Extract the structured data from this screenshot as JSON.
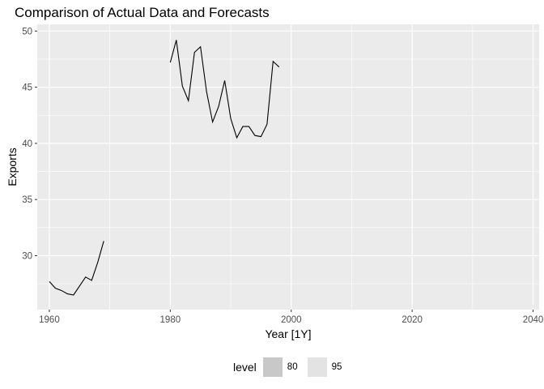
{
  "chart_data": {
    "type": "line",
    "title": "Comparison of Actual Data and Forecasts",
    "xlabel": "Year [1Y]",
    "ylabel": "Exports",
    "xlim": [
      1958,
      2041
    ],
    "ylim": [
      25.2,
      50.6
    ],
    "xticks": [
      1960,
      1980,
      2000,
      2020,
      2040
    ],
    "yticks": [
      30,
      35,
      40,
      45,
      50
    ],
    "grid": true,
    "legend": {
      "title": "level",
      "position": "bottom",
      "entries": [
        "80",
        "95"
      ]
    },
    "colors": {
      "panel": "#ebebeb",
      "grid": "#ffffff",
      "line": "#000000",
      "level80": "#c8c8c8",
      "level95": "#e3e3e3"
    },
    "series": [
      {
        "x": [
          1960,
          1961,
          1962,
          1963,
          1964,
          1965,
          1966,
          1967,
          1968,
          1969
        ],
        "values": [
          27.7,
          27.1,
          26.9,
          26.6,
          26.5,
          27.3,
          28.1,
          27.8,
          29.4,
          31.3
        ]
      },
      {
        "x": [
          1980,
          1981,
          1982,
          1983,
          1984,
          1985,
          1986,
          1987,
          1988,
          1989,
          1990,
          1991,
          1992,
          1993,
          1994,
          1995,
          1996,
          1997,
          1998
        ],
        "values": [
          47.2,
          49.2,
          45.1,
          43.8,
          48.1,
          48.6,
          44.6,
          41.9,
          43.3,
          45.6,
          42.2,
          40.5,
          41.5,
          41.5,
          40.7,
          40.6,
          41.7,
          47.3,
          46.8
        ]
      }
    ]
  }
}
